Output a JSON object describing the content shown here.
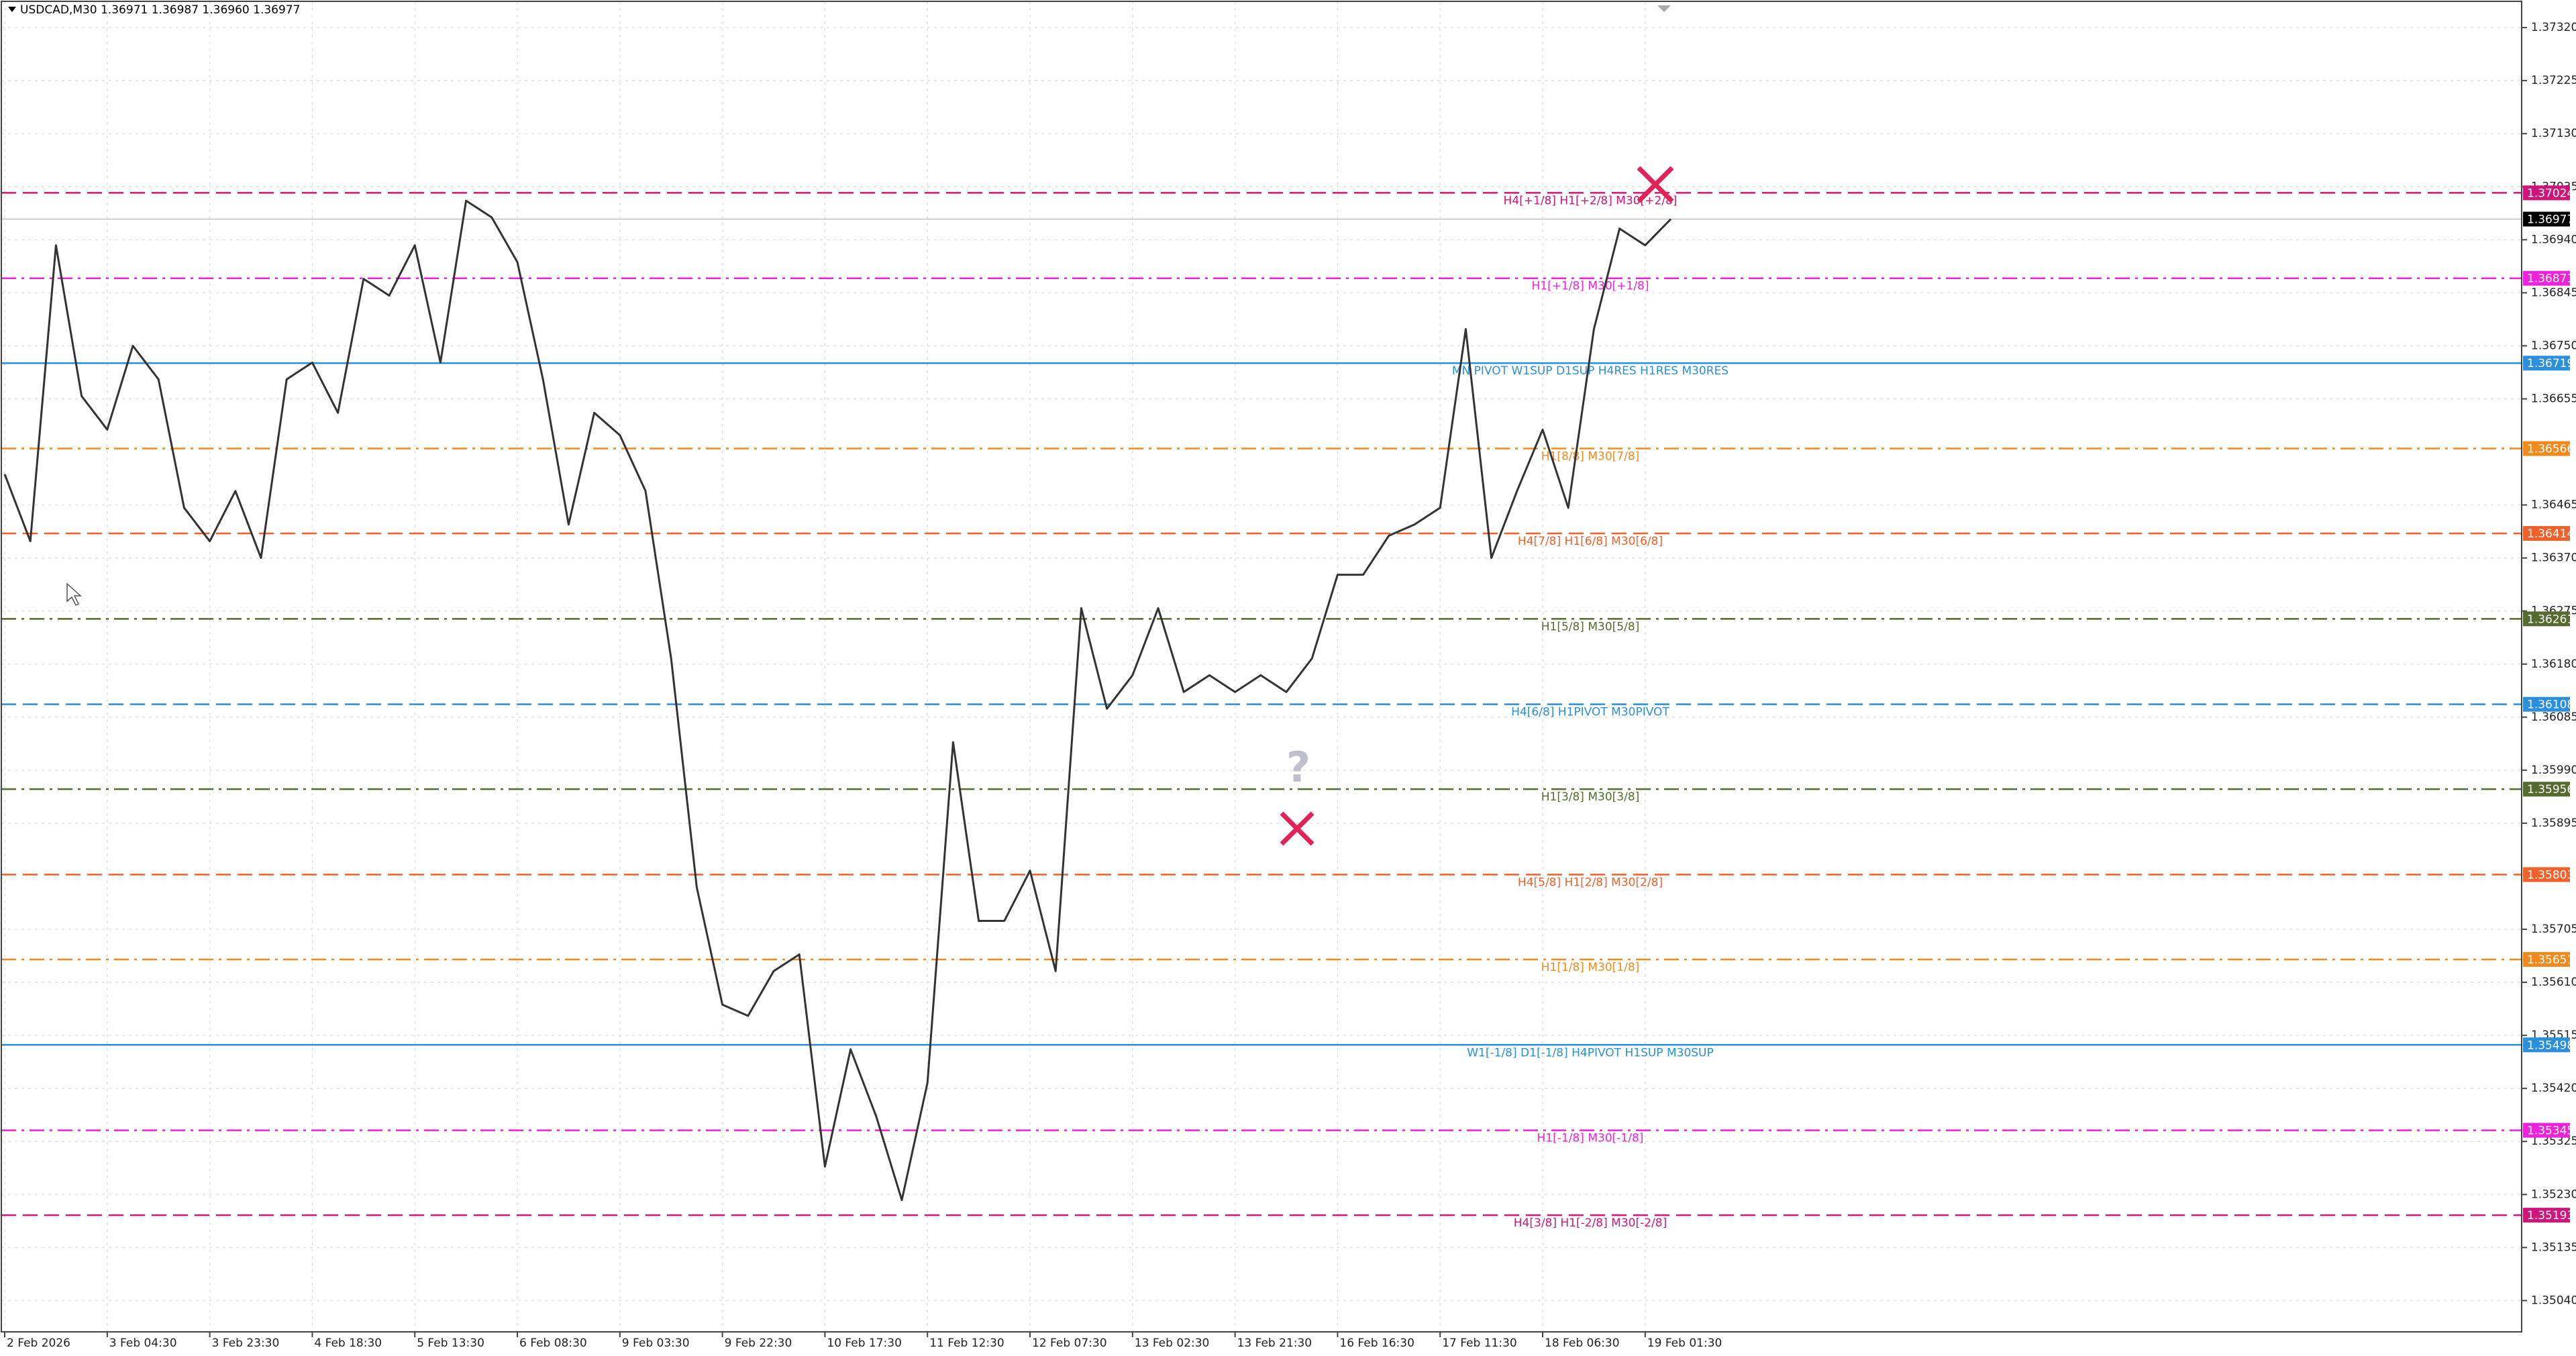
{
  "chart_data": {
    "type": "line",
    "title": "USDCAD,M30  1.36971 1.36987 1.36960 1.36977",
    "categories": [
      "2 Feb 2026",
      null,
      null,
      null,
      "3 Feb 04:30",
      null,
      null,
      null,
      "3 Feb 23:30",
      null,
      null,
      null,
      "4 Feb 18:30",
      null,
      null,
      null,
      "5 Feb 13:30",
      null,
      null,
      null,
      "6 Feb 08:30",
      null,
      null,
      null,
      "9 Feb 03:30",
      null,
      null,
      null,
      "9 Feb 22:30",
      null,
      null,
      null,
      "10 Feb 17:30",
      null,
      null,
      null,
      "11 Feb 12:30",
      null,
      null,
      null,
      "12 Feb 07:30",
      null,
      null,
      null,
      "13 Feb 02:30",
      null,
      null,
      null,
      "13 Feb 21:30",
      null,
      null,
      null,
      "16 Feb 16:30",
      null,
      null,
      null,
      "17 Feb 11:30",
      null,
      null,
      null,
      "18 Feb 06:30",
      null,
      null,
      null,
      "19 Feb 01:30",
      null
    ],
    "series": [
      {
        "name": "USDCAD",
        "color": "#333333",
        "values": [
          1.3652,
          1.364,
          1.3693,
          1.3666,
          1.366,
          1.3675,
          1.3669,
          1.3646,
          1.364,
          1.3649,
          1.3637,
          1.3669,
          1.3672,
          1.3663,
          1.3687,
          1.3684,
          1.3693,
          1.3672,
          1.3701,
          1.3698,
          1.369,
          1.3669,
          1.3643,
          1.3663,
          1.3659,
          1.3649,
          1.3619,
          1.3578,
          1.3557,
          1.3555,
          1.3563,
          1.3566,
          1.3528,
          1.3549,
          1.3537,
          1.3522,
          1.3543,
          1.3604,
          1.3572,
          1.3572,
          1.3581,
          1.3563,
          1.3628,
          1.361,
          1.3616,
          1.3628,
          1.3613,
          1.3616,
          1.3613,
          1.3616,
          1.3613,
          1.3619,
          1.3634,
          1.3634,
          1.3641,
          1.3643,
          1.3646,
          1.3678,
          1.3637,
          1.3649,
          1.366,
          1.3646,
          1.3678,
          1.3696,
          1.3693,
          1.36977
        ]
      }
    ],
    "ylim": [
      1.34984,
      1.37367
    ],
    "yticks": [
      {
        "value": 1.3732,
        "label": "1.37320"
      },
      1.37225,
      {
        "value": 1.3713,
        "label": "1.37130"
      },
      1.37035,
      {
        "value": 1.3694,
        "label": "1.36940"
      },
      1.36845,
      {
        "value": 1.3675,
        "label": "1.36750"
      },
      1.36655,
      1.36465,
      {
        "value": 1.3637,
        "label": "1.36370"
      },
      1.36275,
      {
        "value": 1.3618,
        "label": "1.36180"
      },
      1.36085,
      {
        "value": 1.3599,
        "label": "1.35990"
      },
      1.35895,
      1.35705,
      {
        "value": 1.3561,
        "label": "1.35610"
      },
      1.35515,
      {
        "value": 1.3542,
        "label": "1.35420"
      },
      1.35325,
      {
        "value": 1.3523,
        "label": "1.35230"
      },
      1.35135,
      {
        "value": 1.3504,
        "label": "1.35040"
      }
    ],
    "grid": true,
    "current_price": 1.36977,
    "levels": [
      {
        "value": 1.37024,
        "label": "H4[+1/8] H1[+2/8] M30[+2/8]",
        "color": "#d0157a",
        "style": "dash"
      },
      {
        "value": 1.36871,
        "label": "H1[+1/8] M30[+1/8]",
        "color": "#ee22dd",
        "style": "dashdot"
      },
      {
        "value": 1.36719,
        "label": "MN PIVOT W1SUP D1SUP H4RES H1RES M30RES",
        "color": "#2a8fdc",
        "style": "solid"
      },
      {
        "value": 1.36566,
        "label": "H1[8/8] M30[7/8]",
        "color": "#f08a1c",
        "style": "dashdot"
      },
      {
        "value": 1.36414,
        "label": "H4[7/8] H1[6/8] M30[6/8]",
        "color": "#f0602a",
        "style": "dash"
      },
      {
        "value": 1.36261,
        "label": "H1[5/8] M30[5/8]",
        "color": "#556b2f",
        "style": "dashdot"
      },
      {
        "value": 1.36108,
        "label": "H4[6/8] H1PIVOT M30PIVOT",
        "color": "#2a8fdc",
        "style": "dash"
      },
      {
        "value": 1.35956,
        "label": "H1[3/8] M30[3/8]",
        "color": "#556b2f",
        "style": "dashdot"
      },
      {
        "value": 1.35803,
        "label": "H4[5/8] H1[2/8] M30[2/8]",
        "color": "#f0602a",
        "style": "dash"
      },
      {
        "value": 1.35651,
        "label": "H1[1/8] M30[1/8]",
        "color": "#f08a1c",
        "style": "dashdot"
      },
      {
        "value": 1.35498,
        "label": "W1[-1/8] D1[-1/8] H4PIVOT H1SUP M30SUP",
        "color": "#2a8fdc",
        "style": "solid"
      },
      {
        "value": 1.35345,
        "label": "H1[-1/8] M30[-1/8]",
        "color": "#ee22dd",
        "style": "dashdot"
      },
      {
        "value": 1.35193,
        "label": "H4[3/8] H1[-2/8] M30[-2/8]",
        "color": "#d0157a",
        "style": "dash"
      }
    ]
  }
}
